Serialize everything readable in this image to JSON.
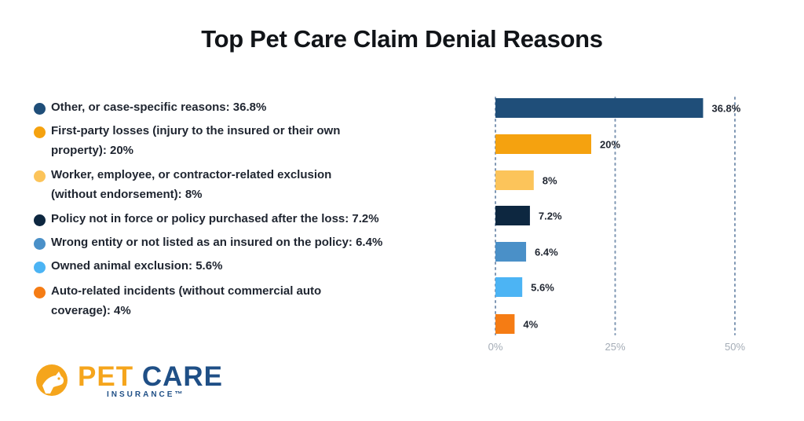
{
  "chart_data": {
    "type": "bar",
    "orientation": "horizontal",
    "title": "Top Pet Care Claim Denial Reasons",
    "categories": [
      "Other, or case-specific reasons: 36.8%",
      "First-party losses (injury to the insured or their own property): 20%",
      "Worker, employee, or contractor-related exclusion (without endorsement): 8%",
      "Policy not in force or policy purchased after the loss: 7.2%",
      "Wrong entity or not listed as an insured on the policy: 6.4%",
      "Owned animal exclusion: 5.6%",
      "Auto-related incidents (without commercial auto coverage): 4%"
    ],
    "legend_lines": [
      [
        "Other, or case-specific reasons: 36.8%"
      ],
      [
        "First-party losses (injury to the insured or their own",
        "property): 20%"
      ],
      [
        "Worker, employee, or contractor-related exclusion",
        "(without endorsement): 8%"
      ],
      [
        "Policy not in force or policy purchased after the loss: 7.2%"
      ],
      [
        "Wrong entity or not listed as an insured on the policy: 6.4%"
      ],
      [
        "Owned animal exclusion: 5.6%"
      ],
      [
        "Auto-related incidents (without commercial auto",
        "coverage): 4%"
      ]
    ],
    "values": [
      36.8,
      20,
      8,
      7.2,
      6.4,
      5.6,
      4
    ],
    "data_labels": [
      "36.8%",
      "20%",
      "8%",
      "7.2%",
      "6.4%",
      "5.6%",
      "4%"
    ],
    "colors": [
      "#1f4e79",
      "#f5a20f",
      "#fcc45a",
      "#0d2740",
      "#4a90c8",
      "#4cb4f4",
      "#f57c14"
    ],
    "x_ticks": [
      "0%",
      "25%",
      "50%"
    ],
    "x_tick_values": [
      0,
      25,
      50
    ],
    "xlim": [
      0,
      50
    ],
    "grid": true,
    "legend_position": "left"
  },
  "logo": {
    "line1_a": "PET",
    "line1_b": "CARE",
    "line2": "INSURANCE™",
    "colors": {
      "primary": "#1f4f86",
      "accent": "#f5a51c"
    }
  }
}
